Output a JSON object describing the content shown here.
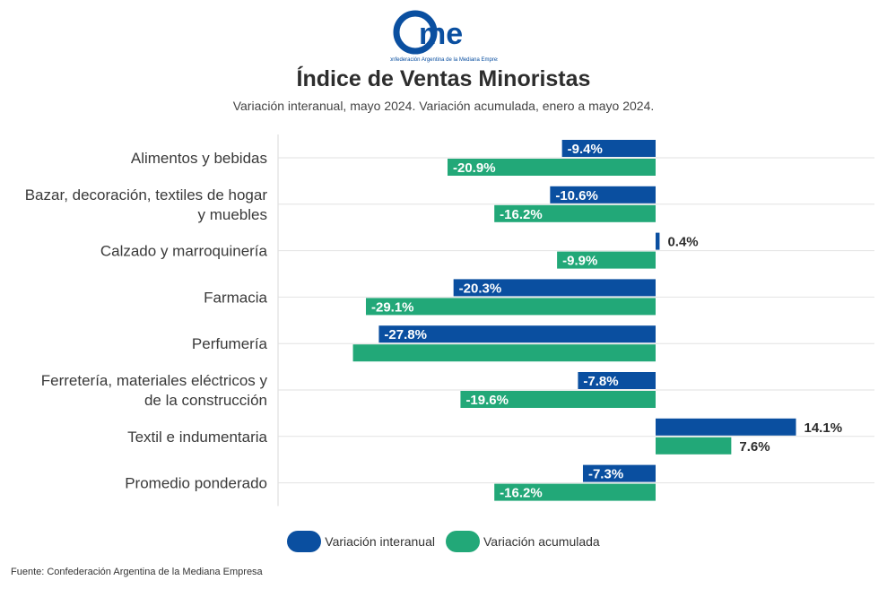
{
  "logo": {
    "text": "came",
    "tagline": "Confederación Argentina de la Mediana Empresa"
  },
  "title": "Índice de Ventas Minoristas",
  "subtitle": "Variación interanual, mayo 2024. Variación acumulada, enero a mayo 2024.",
  "chart_data": {
    "type": "bar",
    "orientation": "horizontal",
    "categories": [
      [
        "Alimentos y bebidas"
      ],
      [
        "Bazar, decoración, textiles de hogar",
        "y muebles"
      ],
      [
        "Calzado y marroquinería"
      ],
      [
        "Farmacia"
      ],
      [
        "Perfumería"
      ],
      [
        "Ferretería, materiales eléctricos y",
        "de la construcción"
      ],
      [
        "Textil e indumentaria"
      ],
      [
        "Promedio ponderado"
      ]
    ],
    "series": [
      {
        "name": "Variación interanual",
        "color": "#0a4fa0",
        "values": [
          -9.4,
          -10.6,
          0.4,
          -20.3,
          -27.8,
          -7.8,
          14.1,
          -7.3
        ],
        "labels": [
          "-9.4%",
          "-10.6%",
          "0.4%",
          "-20.3%",
          "-27.8%",
          "-7.8%",
          "14.1%",
          "-7.3%"
        ]
      },
      {
        "name": "Variación acumulada",
        "color": "#22a878",
        "values": [
          -20.9,
          -16.2,
          -9.9,
          -29.1,
          -30.4,
          -19.6,
          7.6,
          -16.2
        ],
        "labels": [
          "-20.9%",
          "-16.2%",
          "-9.9%",
          "-29.1%",
          "",
          "-19.6%",
          "7.6%",
          "-16.2%"
        ]
      }
    ],
    "xlim": [
      -31,
      22
    ],
    "grid": true,
    "legend": "bottom"
  },
  "source": "Fuente: Confederación Argentina de la Mediana Empresa"
}
